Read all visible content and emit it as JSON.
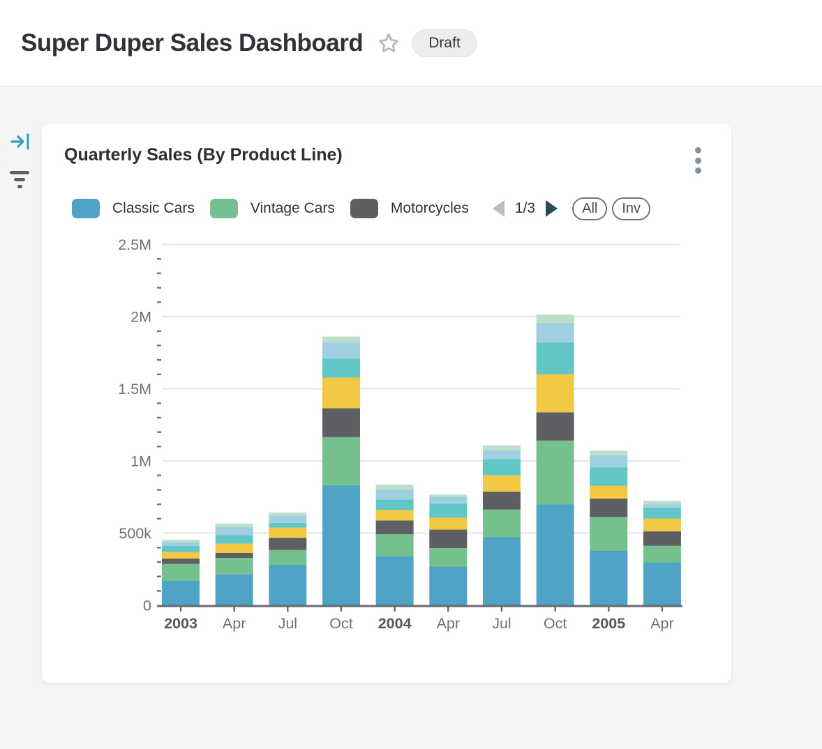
{
  "header": {
    "title": "Super Duper Sales Dashboard",
    "badge": "Draft"
  },
  "card": {
    "title": "Quarterly Sales (By Product Line)",
    "legend": {
      "page": "1/3",
      "items": [
        {
          "label": "Classic Cars",
          "color": "#4ea3c6"
        },
        {
          "label": "Vintage Cars",
          "color": "#74c18d"
        },
        {
          "label": "Motorcycles",
          "color": "#5d5f62"
        }
      ]
    },
    "buttons": {
      "all": "All",
      "inv": "Inv"
    }
  },
  "chart_data": {
    "type": "bar",
    "stacked": true,
    "title": "Quarterly Sales (By Product Line)",
    "categories": [
      {
        "label": "2003",
        "bold": true
      },
      {
        "label": "Apr",
        "bold": false
      },
      {
        "label": "Jul",
        "bold": false
      },
      {
        "label": "Oct",
        "bold": false
      },
      {
        "label": "2004",
        "bold": true
      },
      {
        "label": "Apr",
        "bold": false
      },
      {
        "label": "Jul",
        "bold": false
      },
      {
        "label": "Oct",
        "bold": false
      },
      {
        "label": "2005",
        "bold": true
      },
      {
        "label": "Apr",
        "bold": false
      }
    ],
    "series": [
      {
        "name": "Classic Cars",
        "color": "#4ea3c6",
        "legend_visible": true,
        "values": [
          172000,
          216000,
          280000,
          832000,
          340000,
          268000,
          471000,
          700000,
          380000,
          297000
        ]
      },
      {
        "name": "Vintage Cars",
        "color": "#74c18d",
        "legend_visible": true,
        "values": [
          115000,
          112000,
          103000,
          333000,
          152000,
          128000,
          192000,
          441000,
          232000,
          115000
        ]
      },
      {
        "name": "Motorcycles",
        "color": "#5d5f62",
        "legend_visible": true,
        "values": [
          37000,
          35000,
          85000,
          200000,
          96000,
          128000,
          125000,
          196000,
          128000,
          101000
        ]
      },
      {
        "name": "",
        "color": "#f3c843",
        "legend_visible": false,
        "values": [
          45000,
          64000,
          70000,
          212000,
          72000,
          83000,
          112000,
          264000,
          88000,
          88000
        ]
      },
      {
        "name": "",
        "color": "#62c6c7",
        "legend_visible": false,
        "values": [
          43000,
          59000,
          33000,
          133000,
          72000,
          96000,
          112000,
          221000,
          128000,
          75000
        ]
      },
      {
        "name": "",
        "color": "#a0cfe1",
        "legend_visible": false,
        "values": [
          29000,
          56000,
          50000,
          112000,
          72000,
          48000,
          64000,
          136000,
          83000,
          24000
        ]
      },
      {
        "name": "",
        "color": "#bcdfc6",
        "legend_visible": false,
        "values": [
          14000,
          24000,
          22000,
          40000,
          32000,
          16000,
          32000,
          56000,
          32000,
          24000
        ]
      }
    ],
    "ylim": [
      0,
      2500000
    ],
    "yticks": [
      {
        "value": 0,
        "label": "0"
      },
      {
        "value": 500000,
        "label": "500k"
      },
      {
        "value": 1000000,
        "label": "1M"
      },
      {
        "value": 1500000,
        "label": "1.5M"
      },
      {
        "value": 2000000,
        "label": "2M"
      },
      {
        "value": 2500000,
        "label": "2.5M"
      }
    ],
    "minor_tick_step": 100000,
    "grid": "horizontal",
    "legend_position": "top",
    "colors": {
      "gridline": "#e2e5ef",
      "axis_line": "#67696d",
      "minor_tick": "#6e737a",
      "tick_label": "#6c7177",
      "tick_label_bold": "#54585e"
    }
  }
}
